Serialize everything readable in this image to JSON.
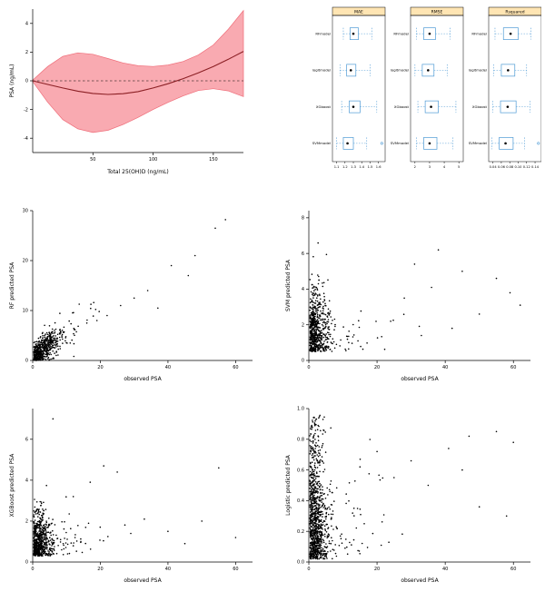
{
  "page": {
    "background": "#ffffff"
  },
  "chart_data": [
    {
      "type": "band_line",
      "title": "",
      "xlabel": "Total 25(OH)D (ng/mL)",
      "ylabel": "PSA (ng/mL)",
      "xlim": [
        0,
        175
      ],
      "ylim": [
        -5,
        5
      ],
      "xticks": [
        50,
        100,
        150
      ],
      "yticks": [
        -4,
        -2,
        0,
        2,
        4
      ],
      "reference_line_y": 0,
      "band_color": "#f9aab1",
      "band_edge": "#ef6d79",
      "line_color": "#8b1f24",
      "x": [
        0,
        12.5,
        25,
        37.5,
        50,
        62.5,
        75,
        87.5,
        100,
        112.5,
        125,
        137.5,
        150,
        162.5,
        175
      ],
      "mean": [
        0,
        -0.25,
        -0.5,
        -0.72,
        -0.88,
        -0.95,
        -0.9,
        -0.75,
        -0.5,
        -0.2,
        0.15,
        0.55,
        1.0,
        1.5,
        2.05
      ],
      "upper": [
        0.05,
        1.0,
        1.7,
        1.95,
        1.85,
        1.55,
        1.25,
        1.05,
        1.0,
        1.1,
        1.35,
        1.8,
        2.5,
        3.6,
        4.9
      ],
      "lower": [
        -0.05,
        -1.5,
        -2.7,
        -3.35,
        -3.6,
        -3.45,
        -3.05,
        -2.55,
        -2.0,
        -1.5,
        -1.05,
        -0.68,
        -0.55,
        -0.7,
        -1.1
      ]
    },
    {
      "type": "boxplot_panels",
      "models": [
        "RFmodel",
        "logitmodel",
        "XGboost",
        "SVMmodel"
      ],
      "box_color": "#4f9bd5",
      "median_color": "#000000",
      "strip_color": "#ffe5b3",
      "panels": [
        {
          "title": "MAE",
          "xlim": [
            1.05,
            1.68
          ],
          "xticks": [
            1.1,
            1.2,
            1.3,
            1.4,
            1.5,
            1.6
          ],
          "boxes": [
            [
              1.18,
              1.26,
              1.3,
              1.36,
              1.52
            ],
            [
              1.14,
              1.22,
              1.27,
              1.33,
              1.5
            ],
            [
              1.16,
              1.25,
              1.3,
              1.38,
              1.58
            ],
            [
              1.1,
              1.18,
              1.23,
              1.3,
              1.46
            ]
          ],
          "outliers": [
            [],
            [],
            [],
            [
              1.64
            ]
          ]
        },
        {
          "title": "RMSE",
          "xlim": [
            1.7,
            5.3
          ],
          "xticks": [
            2,
            3,
            4,
            5
          ],
          "boxes": [
            [
              2.1,
              2.6,
              3.0,
              3.4,
              4.4
            ],
            [
              2.0,
              2.5,
              2.9,
              3.3,
              4.2
            ],
            [
              2.2,
              2.7,
              3.1,
              3.6,
              4.8
            ],
            [
              2.1,
              2.6,
              3.0,
              3.5,
              4.6
            ]
          ],
          "outliers": [
            [],
            [],
            [],
            []
          ]
        },
        {
          "title": "Rsquared",
          "xlim": [
            0.03,
            0.155
          ],
          "xticks": [
            0.04,
            0.06,
            0.08,
            0.1,
            0.12,
            0.14
          ],
          "xtick_labels": [
            "0.04",
            "0.06",
            "0.08",
            "0.10",
            "0.12",
            "0.14"
          ],
          "boxes": [
            [
              0.045,
              0.065,
              0.082,
              0.1,
              0.13
            ],
            [
              0.042,
              0.06,
              0.076,
              0.092,
              0.12
            ],
            [
              0.04,
              0.058,
              0.075,
              0.095,
              0.128
            ],
            [
              0.038,
              0.055,
              0.07,
              0.088,
              0.115
            ]
          ],
          "outliers": [
            [],
            [],
            [],
            [
              0.148
            ]
          ]
        }
      ]
    },
    {
      "type": "scatter",
      "xlabel": "observed PSA",
      "ylabel": "RF predicted PSA",
      "xlim": [
        0,
        65
      ],
      "ylim": [
        0,
        30
      ],
      "xticks": [
        0,
        20,
        40,
        60
      ],
      "yticks": [
        0,
        10,
        20,
        30
      ],
      "seed": 11,
      "clusters": [
        {
          "n": 520,
          "x_min": 0.3,
          "x_sd": 3.5,
          "y_mode": "linear",
          "slope": 0.5,
          "intercept": 0.8,
          "y_sd": 1.2
        },
        {
          "n": 70,
          "x_min": 2,
          "x_sd": 8,
          "y_mode": "linear",
          "slope": 0.45,
          "intercept": 0.8,
          "y_sd": 2.0
        }
      ],
      "extra_points": [
        [
          57,
          28.2
        ],
        [
          54,
          26.5
        ],
        [
          48,
          21
        ],
        [
          46,
          17
        ],
        [
          41,
          19
        ],
        [
          34,
          14
        ],
        [
          30,
          12.5
        ],
        [
          26,
          11
        ],
        [
          22,
          9
        ],
        [
          19,
          8
        ],
        [
          16,
          7.5
        ],
        [
          37,
          10.5
        ]
      ]
    },
    {
      "type": "scatter",
      "xlabel": "observed PSA",
      "ylabel": "SVM predicted PSA",
      "xlim": [
        0,
        65
      ],
      "ylim": [
        0,
        8.4
      ],
      "xticks": [
        0,
        20,
        40,
        60
      ],
      "yticks": [
        0,
        2,
        4,
        6,
        8
      ],
      "seed": 22,
      "clusters": [
        {
          "n": 620,
          "x_min": 0.3,
          "x_sd": 2.5,
          "y_mode": "halfnormal",
          "y_base": 0.5,
          "y_sd": 1.7,
          "y_max": 8.1
        },
        {
          "n": 60,
          "x_min": 3,
          "x_sd": 9,
          "y_mode": "halfnormal",
          "y_base": 0.5,
          "y_sd": 1.4
        }
      ],
      "extra_points": [
        [
          55,
          4.6
        ],
        [
          59,
          3.8
        ],
        [
          45,
          5.0
        ],
        [
          50,
          2.6
        ],
        [
          36,
          4.1
        ],
        [
          31,
          5.4
        ],
        [
          62,
          3.1
        ],
        [
          42,
          1.8
        ],
        [
          38,
          6.2
        ],
        [
          28,
          3.5
        ],
        [
          24,
          2.2
        ],
        [
          33,
          1.4
        ]
      ]
    },
    {
      "type": "scatter",
      "xlabel": "observed PSA",
      "ylabel": "XGBoost predicted PSA",
      "xlim": [
        0,
        65
      ],
      "ylim": [
        0,
        7.5
      ],
      "xticks": [
        0,
        20,
        40,
        60
      ],
      "yticks": [
        0,
        2,
        4,
        6
      ],
      "seed": 33,
      "clusters": [
        {
          "n": 620,
          "x_min": 0.3,
          "x_sd": 2.5,
          "y_mode": "halfnormal",
          "y_base": 0.3,
          "y_sd": 1.1,
          "y_max": 6.6
        },
        {
          "n": 60,
          "x_min": 3,
          "x_sd": 9,
          "y_mode": "halfnormal",
          "y_base": 0.3,
          "y_sd": 1.0
        }
      ],
      "extra_points": [
        [
          6,
          7.0
        ],
        [
          21,
          4.7
        ],
        [
          25,
          4.4
        ],
        [
          55,
          4.6
        ],
        [
          60,
          1.2
        ],
        [
          40,
          1.5
        ],
        [
          33,
          2.1
        ],
        [
          17,
          3.9
        ],
        [
          45,
          0.9
        ],
        [
          29,
          1.4
        ],
        [
          12,
          3.2
        ],
        [
          50,
          2.0
        ]
      ]
    },
    {
      "type": "scatter",
      "xlabel": "observed PSA",
      "ylabel": "Logistic predicted PSA",
      "xlim": [
        0,
        65
      ],
      "ylim": [
        0,
        1
      ],
      "xticks": [
        0,
        20,
        40,
        60
      ],
      "yticks": [
        0,
        0.2,
        0.4,
        0.6,
        0.8,
        1
      ],
      "ytick_labels": [
        "0.0",
        "0.2",
        "0.4",
        "0.6",
        "0.8",
        "1.0"
      ],
      "seed": 44,
      "clusters": [
        {
          "n": 780,
          "x_min": 0.3,
          "x_sd": 2.5,
          "y_mode": "halfnormal",
          "y_base": 0.02,
          "y_sd": 0.3,
          "y_max": 0.97
        },
        {
          "n": 220,
          "x_min": 0.3,
          "x_sd": 2.0,
          "y_mode": "uniform",
          "y_min": 0.02,
          "y_max": 0.95
        },
        {
          "n": 70,
          "x_min": 3,
          "x_sd": 9,
          "y_mode": "halfnormal",
          "y_base": 0.05,
          "y_sd": 0.3,
          "y_max": 0.95
        }
      ],
      "extra_points": [
        [
          55,
          0.85
        ],
        [
          60,
          0.78
        ],
        [
          45,
          0.6
        ],
        [
          41,
          0.74
        ],
        [
          35,
          0.5
        ],
        [
          30,
          0.66
        ],
        [
          25,
          0.55
        ],
        [
          50,
          0.36
        ],
        [
          20,
          0.72
        ],
        [
          15,
          0.62
        ],
        [
          58,
          0.3
        ],
        [
          47,
          0.82
        ]
      ]
    }
  ]
}
